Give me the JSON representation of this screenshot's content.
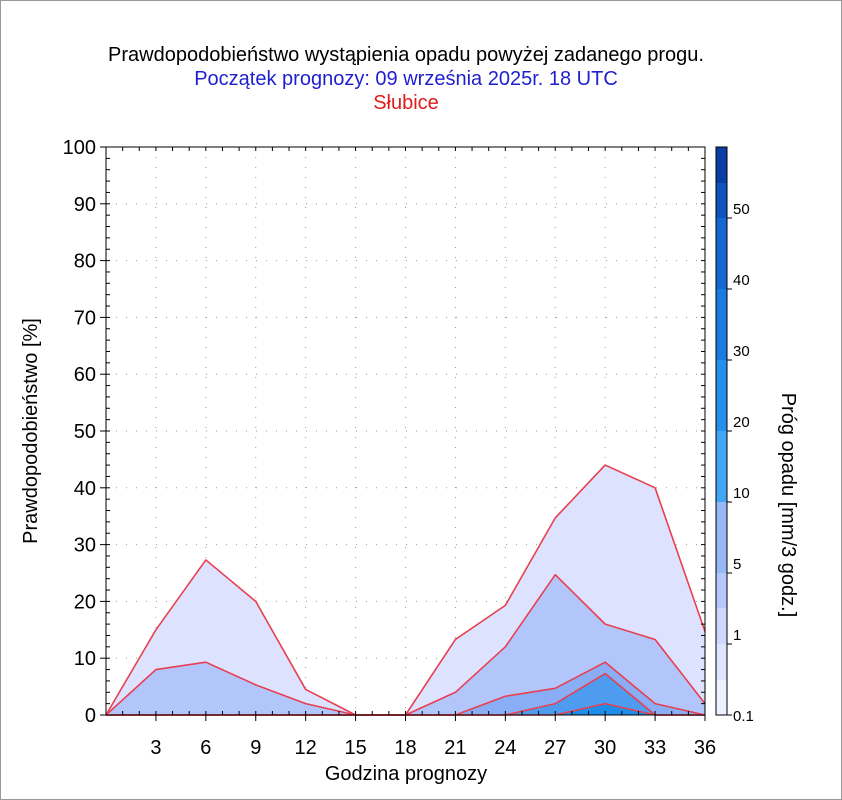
{
  "header": {
    "title": "Prawdopodobieństwo wystąpienia opadu powyżej zadanego progu.",
    "subtitle": "Początek prognozy: 09 września 2025r. 18 UTC",
    "location": "Słubice"
  },
  "chart_data": {
    "type": "area",
    "xlabel": "Godzina prognozy",
    "ylabel": "Prawdopodobieństwo [%]",
    "x": [
      0,
      3,
      6,
      9,
      12,
      15,
      18,
      21,
      24,
      27,
      30,
      33,
      36
    ],
    "xticks": [
      "3",
      "6",
      "9",
      "12",
      "15",
      "18",
      "21",
      "24",
      "27",
      "30",
      "33",
      "36"
    ],
    "xlim": [
      0,
      36
    ],
    "ylim": [
      0,
      100
    ],
    "yticks": [
      "0",
      "10",
      "20",
      "30",
      "40",
      "50",
      "60",
      "70",
      "80",
      "90",
      "100"
    ],
    "grid": true,
    "series": [
      {
        "name": "0.1",
        "values": [
          0,
          15,
          27.3,
          20,
          4.5,
          0,
          0,
          13.3,
          19.3,
          34.7,
          44,
          40,
          14.7
        ]
      },
      {
        "name": "1",
        "values": [
          0,
          8,
          9.3,
          5.3,
          2,
          0,
          0,
          4,
          12,
          24.7,
          16,
          13.3,
          2
        ]
      },
      {
        "name": "5",
        "values": [
          0,
          0,
          0,
          0,
          0,
          0,
          0,
          0,
          3.3,
          4.7,
          9.3,
          2,
          0
        ]
      },
      {
        "name": "10",
        "values": [
          0,
          0,
          0,
          0,
          0,
          0,
          0,
          0,
          0,
          2,
          7.3,
          0,
          0
        ]
      },
      {
        "name": "20",
        "values": [
          0,
          0,
          0,
          0,
          0,
          0,
          0,
          0,
          0,
          0,
          2,
          0,
          0
        ]
      }
    ],
    "colorbar": {
      "label": "Próg opadu [mm/3 godz.]",
      "labels": [
        "0.1",
        "1",
        "5",
        "10",
        "20",
        "30",
        "40",
        "50"
      ],
      "colors": [
        "#eef1ff",
        "#dfe5ff",
        "#cdd8ff",
        "#b5c8fb",
        "#96b8f5",
        "#3fa7f3",
        "#2490ec",
        "#1b7ce0",
        "#1568d2",
        "#0f54bd",
        "#0a3ea4"
      ]
    },
    "series_fill": [
      "#dde3ff",
      "#b3c6fb",
      "#8aaef6",
      "#4e9cf0",
      "#1e8ee8"
    ],
    "line_color": "#e84050"
  }
}
